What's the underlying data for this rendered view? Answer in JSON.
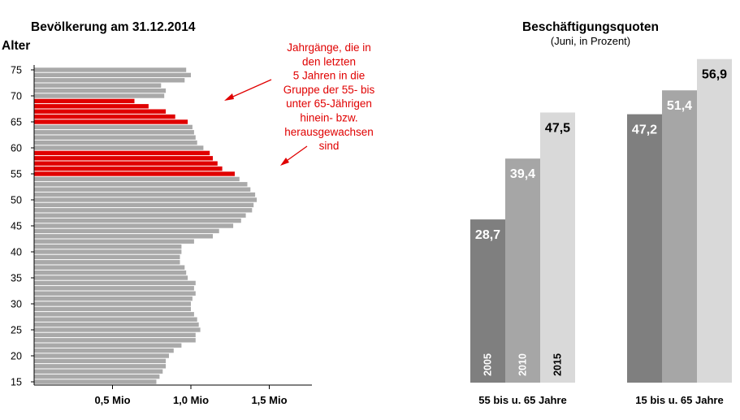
{
  "chart_data": [
    {
      "type": "bar",
      "orientation": "horizontal",
      "title": "Bevölkerung am 31.12.2014",
      "ylabel": "Alter",
      "y_ticks": [
        "75",
        "70",
        "65",
        "60",
        "55",
        "50",
        "45",
        "40",
        "35",
        "30",
        "25",
        "20",
        "15"
      ],
      "x_ticks": [
        "0,5 Mio",
        "1,0 Mio",
        "1,5 Mio"
      ],
      "xlim": [
        0,
        1.62
      ],
      "ages": [
        75,
        74,
        73,
        72,
        71,
        70,
        69,
        68,
        67,
        66,
        65,
        64,
        63,
        62,
        61,
        60,
        59,
        58,
        57,
        56,
        55,
        54,
        53,
        52,
        51,
        50,
        49,
        48,
        47,
        46,
        45,
        44,
        43,
        42,
        41,
        40,
        39,
        38,
        37,
        36,
        35,
        34,
        33,
        32,
        31,
        30,
        29,
        28,
        27,
        26,
        25,
        24,
        23,
        22,
        21,
        20,
        19,
        18,
        17,
        16,
        15
      ],
      "values": [
        0.97,
        1.0,
        0.96,
        0.81,
        0.84,
        0.83,
        0.64,
        0.73,
        0.84,
        0.9,
        0.98,
        1.01,
        1.02,
        1.03,
        1.04,
        1.08,
        1.12,
        1.14,
        1.17,
        1.2,
        1.28,
        1.31,
        1.36,
        1.38,
        1.41,
        1.42,
        1.4,
        1.39,
        1.35,
        1.32,
        1.27,
        1.18,
        1.14,
        1.02,
        0.94,
        0.94,
        0.93,
        0.93,
        0.96,
        0.97,
        0.98,
        1.03,
        1.02,
        1.03,
        1.01,
        1.0,
        1.0,
        1.02,
        1.04,
        1.05,
        1.06,
        1.03,
        1.03,
        0.94,
        0.89,
        0.86,
        0.84,
        0.84,
        0.82,
        0.8,
        0.78
      ],
      "highlighted_ages": [
        55,
        56,
        57,
        58,
        59,
        65,
        66,
        67,
        68,
        69
      ],
      "colors": {
        "normal": "#a9a9a9",
        "highlight": "#e00000"
      },
      "annotation": [
        "Jahrgänge, die in",
        "den letzten",
        "5 Jahren in die",
        "Gruppe der 55- bis",
        "unter 65-Jährigen",
        "hinein- bzw.",
        "herausgewachsen",
        "sind"
      ]
    },
    {
      "type": "bar",
      "title": "Beschäftigungsquoten",
      "subtitle": "(Juni, in Prozent)",
      "categories": [
        "55 bis u. 65 Jahre",
        "15 bis u. 65 Jahre"
      ],
      "series": [
        {
          "name": "2005",
          "values": [
            28.7,
            47.2
          ],
          "labels": [
            "28,7",
            "47,2"
          ],
          "color": "#7f7f7f"
        },
        {
          "name": "2010",
          "values": [
            39.4,
            51.4
          ],
          "labels": [
            "39,4",
            "51,4"
          ],
          "color": "#a6a6a6"
        },
        {
          "name": "2015",
          "values": [
            47.5,
            56.9
          ],
          "labels": [
            "47,5",
            "56,9"
          ],
          "color": "#d9d9d9"
        }
      ],
      "ylim": [
        0,
        57.8
      ]
    }
  ]
}
